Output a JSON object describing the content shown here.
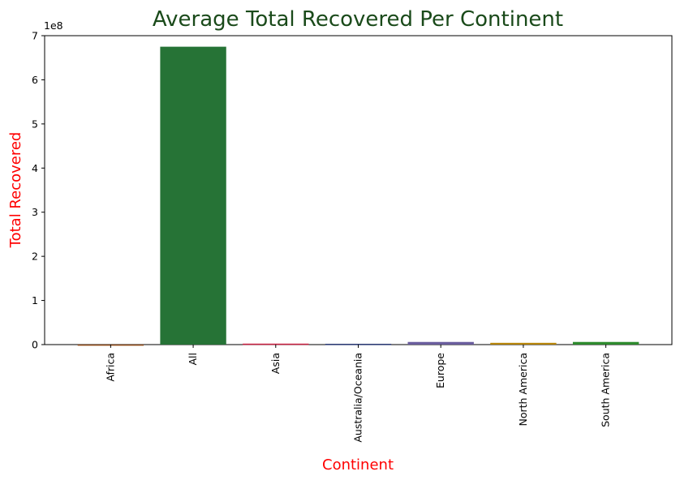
{
  "chart_data": {
    "type": "bar",
    "title": "Average Total Recovered Per Continent",
    "xlabel": "Continent",
    "ylabel": "Total Recovered",
    "y_offset_label": "1e8",
    "categories": [
      "Africa",
      "All",
      "Asia",
      "Australia/Oceania",
      "Europe",
      "North America",
      "South America"
    ],
    "values": [
      250000,
      675000000,
      2200000,
      1700000,
      6000000,
      4000000,
      6000000
    ],
    "bar_colors": [
      "#8b4513",
      "#267336",
      "#cc2244",
      "#1f2f6b",
      "#6a5d9e",
      "#b8860b",
      "#2e8b2e"
    ],
    "ylim": [
      0,
      700000000
    ],
    "yticks": [
      0,
      100000000,
      200000000,
      300000000,
      400000000,
      500000000,
      600000000,
      700000000
    ],
    "ytick_labels": [
      "0",
      "1",
      "2",
      "3",
      "4",
      "5",
      "6",
      "7"
    ],
    "colors": {
      "title": "#1a4a1a",
      "axis_labels": "#ff0000"
    },
    "grid": false,
    "legend": "none"
  }
}
